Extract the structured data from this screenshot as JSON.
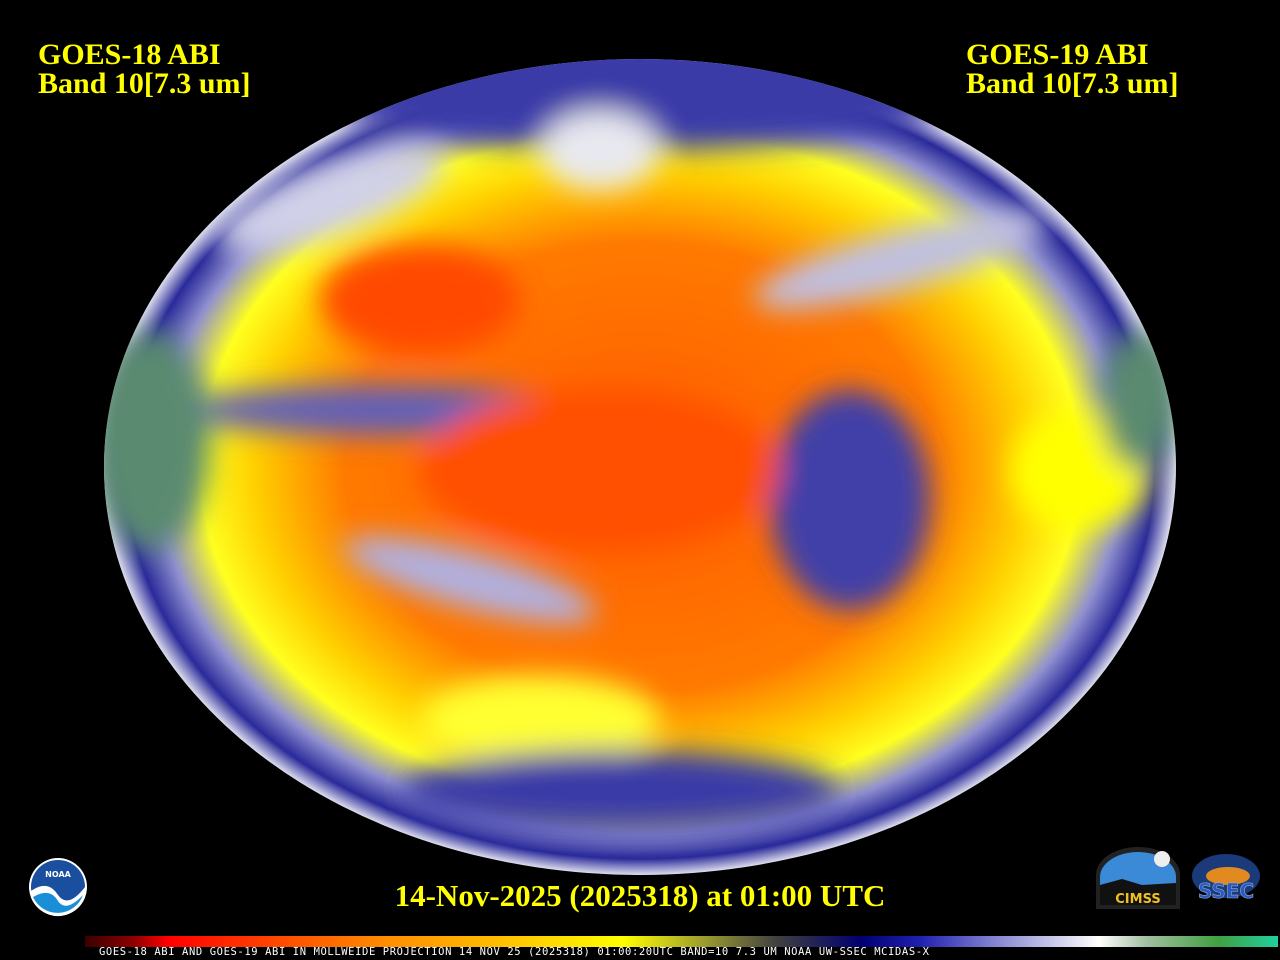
{
  "header": {
    "left_title": [
      "GOES-18 ABI",
      "Band 10[7.3 um]"
    ],
    "right_title": [
      "GOES-19 ABI",
      "Band 10[7.3 um]"
    ]
  },
  "date_label": "14-Nov-2025 (2025318) at 01:00 UTC",
  "colorbar": {
    "caption": "GOES-18 ABI AND GOES-19 ABI IN MOLLWEIDE PROJECTION 14 NOV 25 (2025318) 01:00:20UTC BAND=10 7.3 UM NOAA UW-SSEC MCIDAS-X",
    "colors": [
      "#3a0000",
      "#ff0000",
      "#ff8c00",
      "#ffff00",
      "#404040",
      "#000070",
      "#ffffff",
      "#40a040",
      "#20d0a0"
    ]
  },
  "logos": {
    "noaa": "NOAA",
    "cimss": "CIMSS",
    "ssec": "SSEC"
  },
  "map": {
    "projection": "Mollweide",
    "colors": {
      "dry": "#ff4000",
      "mid": "#ffff00",
      "moist": "#1a1a8c",
      "cloud": "#ffffff"
    }
  }
}
